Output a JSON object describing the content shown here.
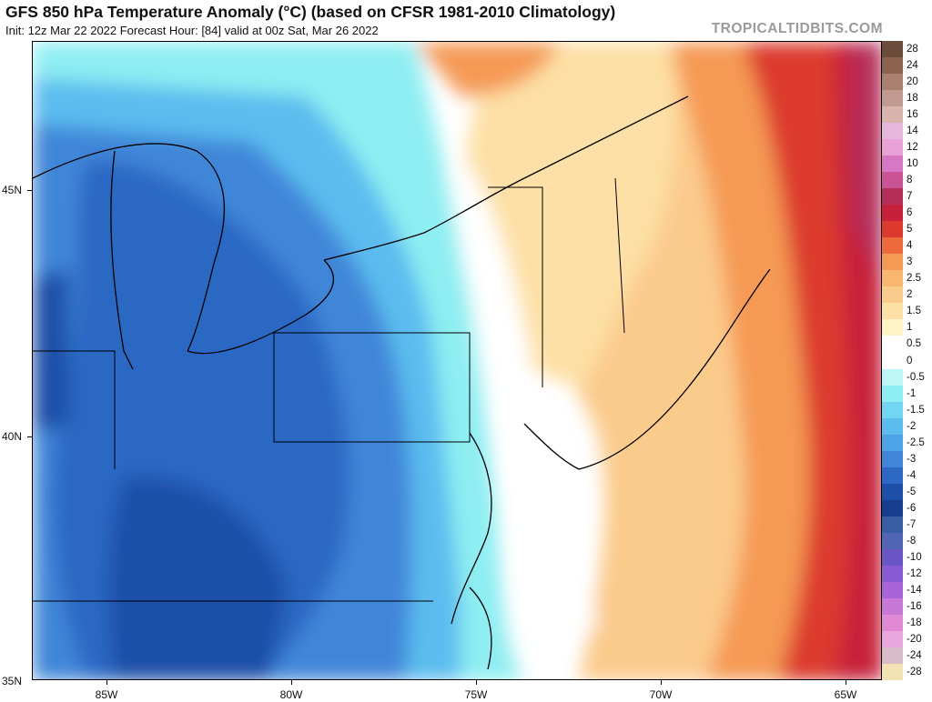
{
  "header": {
    "title": "GFS 850 hPa Temperature Anomaly (°C) (based on CFSR 1981-2010 Climatology)",
    "subtitle": "Init: 12z Mar 22 2022   Forecast Hour: [84]   valid at 00z Sat, Mar 26 2022",
    "credit": "TROPICALTIDBITS.COM"
  },
  "axes": {
    "lat_labels": [
      "45N",
      "40N",
      "35N"
    ],
    "lon_labels": [
      "85W",
      "80W",
      "75W",
      "70W",
      "65W"
    ]
  },
  "legend": {
    "items": [
      {
        "label": "28",
        "color": "#6b4c3b"
      },
      {
        "label": "24",
        "color": "#8c6350"
      },
      {
        "label": "20",
        "color": "#a97f70"
      },
      {
        "label": "18",
        "color": "#c19a90"
      },
      {
        "label": "16",
        "color": "#d9b4ad"
      },
      {
        "label": "14",
        "color": "#e6b7dc"
      },
      {
        "label": "12",
        "color": "#e9a2d8"
      },
      {
        "label": "10",
        "color": "#d878c4"
      },
      {
        "label": "8",
        "color": "#c95396"
      },
      {
        "label": "7",
        "color": "#b52e5a"
      },
      {
        "label": "6",
        "color": "#c7203a"
      },
      {
        "label": "5",
        "color": "#dc3a2f"
      },
      {
        "label": "4",
        "color": "#ec6a3c"
      },
      {
        "label": "3",
        "color": "#f59a55"
      },
      {
        "label": "2.5",
        "color": "#f9b671"
      },
      {
        "label": "2",
        "color": "#fbcb8c"
      },
      {
        "label": "1.5",
        "color": "#fde0a6"
      },
      {
        "label": "1",
        "color": "#fff2c6"
      },
      {
        "label": "0.5",
        "color": "#ffffff"
      },
      {
        "label": "0",
        "color": "#ffffff"
      },
      {
        "label": "-0.5",
        "color": "#bdf6f6"
      },
      {
        "label": "-1",
        "color": "#8eeef2"
      },
      {
        "label": "-1.5",
        "color": "#72d6f2"
      },
      {
        "label": "-2",
        "color": "#5cbcef"
      },
      {
        "label": "-2.5",
        "color": "#4ea2e8"
      },
      {
        "label": "-3",
        "color": "#3f86d8"
      },
      {
        "label": "-4",
        "color": "#2c68c4"
      },
      {
        "label": "-5",
        "color": "#1e4fa8"
      },
      {
        "label": "-6",
        "color": "#173e8c"
      },
      {
        "label": "-7",
        "color": "#3a5ea4"
      },
      {
        "label": "-8",
        "color": "#5264b4"
      },
      {
        "label": "-10",
        "color": "#6a55c4"
      },
      {
        "label": "-12",
        "color": "#8a5ad4"
      },
      {
        "label": "-14",
        "color": "#a864d8"
      },
      {
        "label": "-16",
        "color": "#c879d8"
      },
      {
        "label": "-18",
        "color": "#e08ad6"
      },
      {
        "label": "-20",
        "color": "#e8a6dc"
      },
      {
        "label": "-24",
        "color": "#d9bcc8"
      },
      {
        "label": "-28",
        "color": "#f3e3b4"
      }
    ]
  }
}
